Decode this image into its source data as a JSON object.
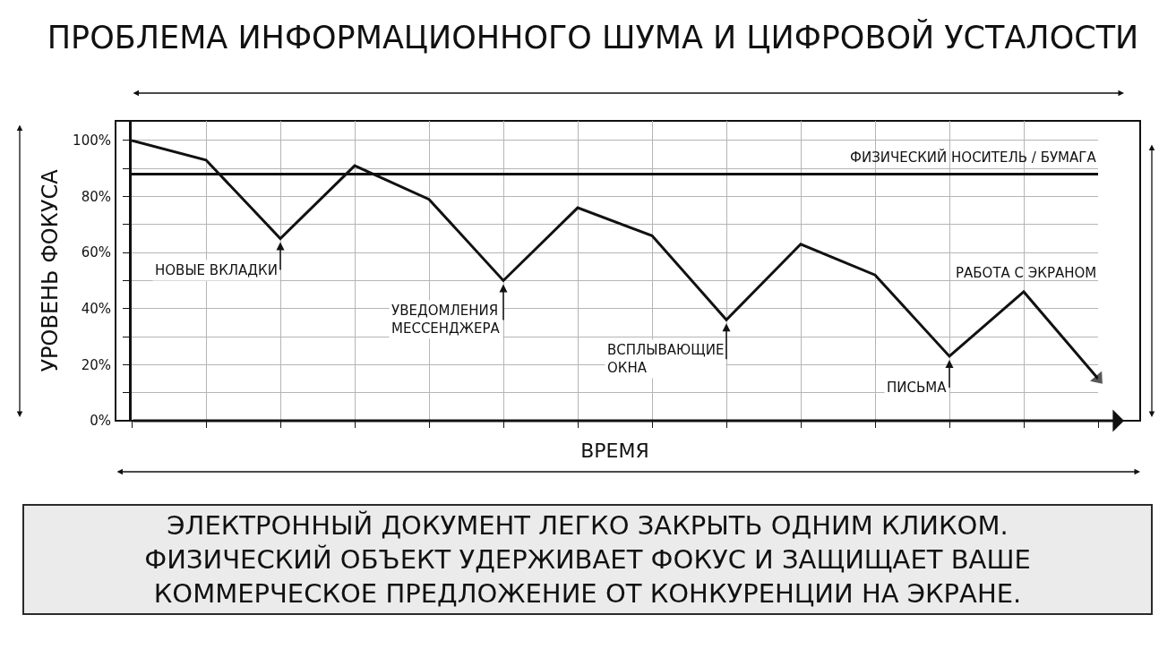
{
  "chart_data": {
    "type": "line",
    "title": "ПРОБЛЕМА ИНФОРМАЦИОННОГО ШУМА И ЦИФРОВОЙ УСТАЛОСТИ",
    "xlabel": "ВРЕМЯ",
    "ylabel": "УРОВЕНЬ ФОКУСА",
    "categories": [
      null,
      null,
      null,
      null,
      null,
      null,
      null,
      null,
      null,
      null,
      null,
      null,
      null,
      null
    ],
    "series": [
      {
        "name": "РАБОТА С ЭКРАНОМ",
        "color": "#111111",
        "values": [
          100,
          93,
          65,
          91,
          79,
          50,
          76,
          66,
          36,
          63,
          52,
          23,
          46,
          15
        ]
      }
    ],
    "ylim": [
      0,
      107
    ],
    "yticks": [
      {
        "value": 0,
        "label": "0%"
      },
      {
        "value": 10,
        "label": null
      },
      {
        "value": 20,
        "label": "20%"
      },
      {
        "value": 30,
        "label": null
      },
      {
        "value": 40,
        "label": "40%"
      },
      {
        "value": 50,
        "label": null
      },
      {
        "value": 60,
        "label": "60%"
      },
      {
        "value": 70,
        "label": null
      },
      {
        "value": 80,
        "label": "80%"
      },
      {
        "value": 90,
        "label": null
      },
      {
        "value": 100,
        "label": "100%"
      }
    ],
    "tick_labels": "y",
    "grid": true,
    "ref_lines": [
      {
        "axis": "y",
        "value": 88,
        "label": "ФИЗИЧЕСКИЙ НОСИТЕЛЬ / БУМАГА",
        "color": "#111111"
      }
    ],
    "annotations": [
      "НОВЫЕ ВКЛАДКИ",
      "УВЕДОМЛЕНИЯ\nМЕССЕНДЖЕРА",
      "ВСПЛЫВАЮЩИЕ\nОКНА",
      "ПИСЬМА",
      "ЭЛЕКТРОННЫЙ ДОКУМЕНТ ЛЕГКО ЗАКРЫТЬ ОДНИМ КЛИКОМ.\nФИЗИЧЕСКИЙ ОБЪЕКТ УДЕРЖИВАЕТ ФОКУС И ЗАЩИЩАЕТ ВАШЕ\nКОММЕРЧЕСКОЕ ПРЕДЛОЖЕНИЕ ОТ КОНКУРЕНЦИИ НА ЭКРАНЕ."
    ]
  }
}
